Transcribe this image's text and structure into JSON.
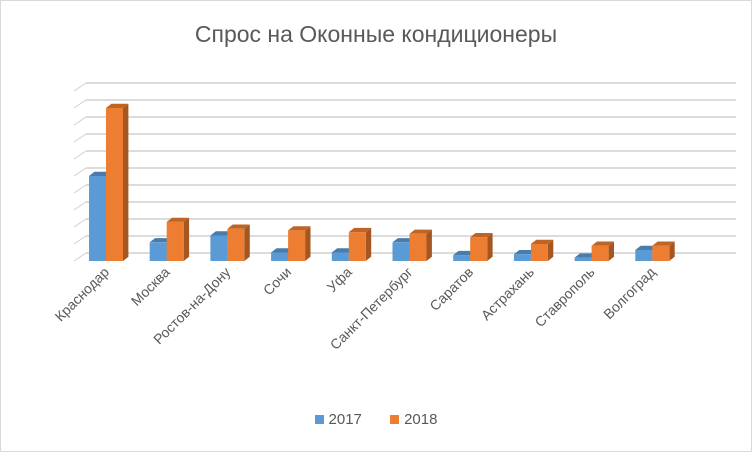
{
  "chart_data": {
    "type": "bar",
    "title": "Спрос на Оконные кондиционеры",
    "categories": [
      "Краснодар",
      "Москва",
      "Ростов-на-Дону",
      "Сочи",
      "Уфа",
      "Санкт-Петербург",
      "Саратов",
      "Астрахань",
      "Ставрополь",
      "Волгоград"
    ],
    "series": [
      {
        "name": "2017",
        "color": "#5b9bd5",
        "values": [
          5.0,
          1.1,
          1.5,
          0.5,
          0.5,
          1.1,
          0.35,
          0.4,
          0.2,
          0.65
        ]
      },
      {
        "name": "2018",
        "color": "#ed7d31",
        "values": [
          9.0,
          2.3,
          1.9,
          1.8,
          1.7,
          1.6,
          1.4,
          1.0,
          0.9,
          0.9
        ]
      }
    ],
    "ylim": [
      0,
      10
    ],
    "grid": true,
    "legend": "bottom",
    "xlabel": "",
    "ylabel": ""
  }
}
